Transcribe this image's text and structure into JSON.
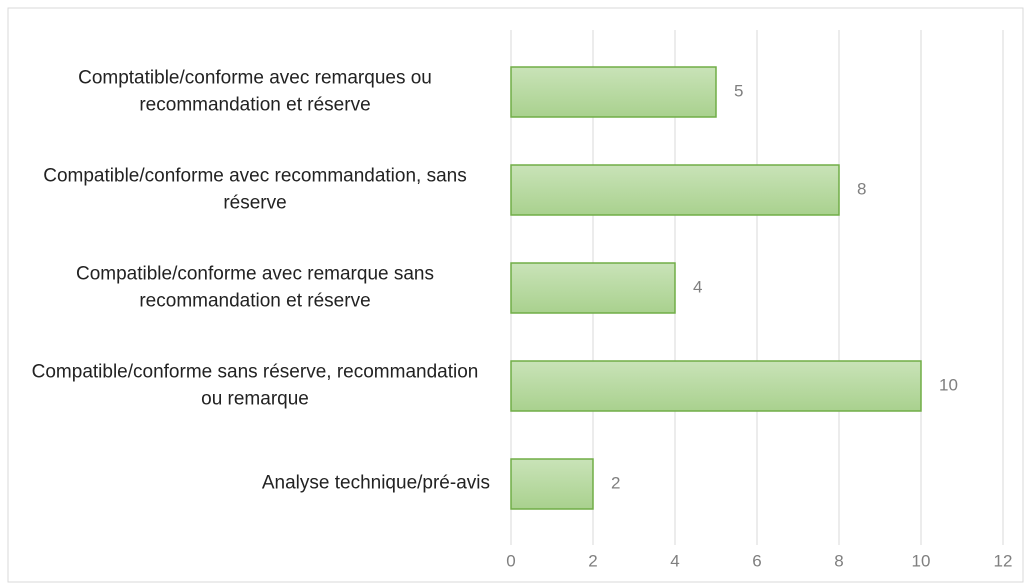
{
  "chart_data": {
    "type": "bar",
    "orientation": "horizontal",
    "categories": [
      "Comptatible/conforme avec remarques ou recommandation et réserve",
      "Compatible/conforme avec recommandation, sans réserve",
      "Compatible/conforme avec remarque sans recommandation et réserve",
      "Compatible/conforme sans réserve, recommandation ou remarque",
      "Analyse technique/pré-avis"
    ],
    "values": [
      5,
      8,
      4,
      10,
      2
    ],
    "color": "#a9d18e",
    "edge_color": "#70ad47",
    "xlim": [
      0,
      12
    ],
    "xticks": [
      0,
      2,
      4,
      6,
      8,
      10,
      12
    ],
    "grid": true
  }
}
